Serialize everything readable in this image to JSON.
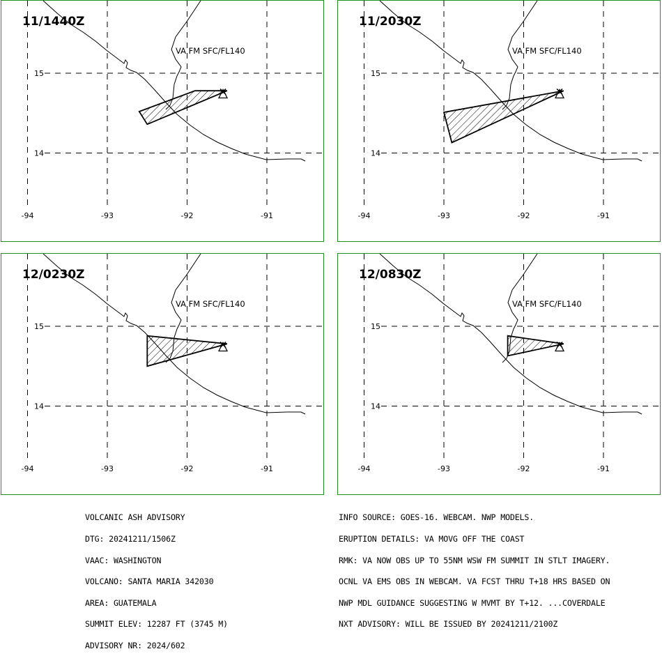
{
  "panels": [
    {
      "time_label": "11/1440Z",
      "layer_label": "VA FM SFC/FL140",
      "polygon": [
        [
          -92.6,
          14.52
        ],
        [
          -92.5,
          14.36
        ],
        [
          -91.5,
          14.78
        ],
        [
          -91.9,
          14.78
        ]
      ]
    },
    {
      "time_label": "11/2030Z",
      "layer_label": "VA FM SFC/FL140",
      "polygon": [
        [
          -93.0,
          14.51
        ],
        [
          -92.9,
          14.13
        ],
        [
          -91.5,
          14.78
        ]
      ]
    },
    {
      "time_label": "12/0230Z",
      "layer_label": "VA FM SFC/FL140",
      "polygon": [
        [
          -92.5,
          14.88
        ],
        [
          -92.5,
          14.5
        ],
        [
          -91.5,
          14.78
        ]
      ]
    },
    {
      "time_label": "12/0830Z",
      "layer_label": "VA FM SFC/FL140",
      "polygon": [
        [
          -92.2,
          14.88
        ],
        [
          -92.2,
          14.63
        ],
        [
          -91.5,
          14.78
        ]
      ]
    }
  ],
  "axes": {
    "lon_ticks": [
      -94,
      -93,
      -92,
      -91
    ],
    "lat_ticks": [
      15,
      14
    ],
    "lon_tick_labels": [
      "-94",
      "-93",
      "-92",
      "-91"
    ],
    "lat_tick_labels": [
      "15",
      "14"
    ]
  },
  "volcano": {
    "name": "SANTA MARIA",
    "lon": -91.55,
    "lat": 14.76
  },
  "colors": {
    "panel_border": "#1f8f1f",
    "ink": "#000000"
  },
  "advisory_left": [
    "VOLCANIC ASH ADVISORY",
    "DTG: 20241211/1506Z",
    "VAAC: WASHINGTON",
    "VOLCANO: SANTA MARIA 342030",
    "AREA: GUATEMALA",
    "SUMMIT ELEV: 12287 FT (3745 M)",
    "ADVISORY NR: 2024/602"
  ],
  "advisory_right": [
    "INFO SOURCE: GOES-16. WEBCAM. NWP MODELS.",
    "ERUPTION DETAILS: VA MOVG OFF THE COAST",
    "RMK: VA NOW OBS UP TO 55NM WSW FM SUMMIT IN STLT IMAGERY.",
    "OCNL VA EMS OBS IN WEBCAM. VA FCST THRU T+18 HRS BASED ON",
    "NWP MDL GUIDANCE SUGGESTING W MVMT BY T+12. ...COVERDALE",
    "NXT ADVISORY: WILL BE ISSUED BY 20241211/2100Z"
  ]
}
